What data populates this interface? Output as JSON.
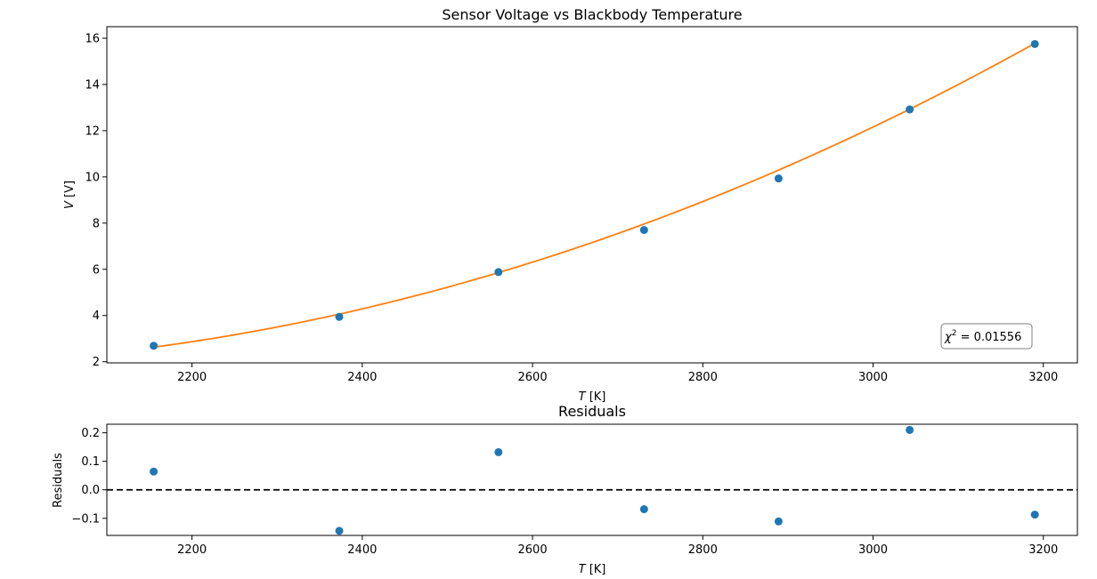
{
  "chart_data": [
    {
      "type": "scatter",
      "title": "Sensor Voltage vs Blackbody Temperature",
      "xlabel_var": "T",
      "xlabel_unit": " [K]",
      "ylabel_var": "V",
      "ylabel_unit": " [V]",
      "xlim": [
        2100,
        3240
      ],
      "ylim": [
        1.95,
        16.5
      ],
      "xticks": [
        2200,
        2400,
        2600,
        2800,
        3000,
        3200
      ],
      "yticks": [
        2,
        4,
        6,
        8,
        10,
        12,
        14,
        16
      ],
      "grid": false,
      "series": [
        {
          "kind": "points",
          "color": "#1f77b4",
          "x": [
            2155,
            2373,
            2560,
            2731,
            2889,
            3043,
            3190
          ],
          "y": [
            2.69,
            3.94,
            5.88,
            7.7,
            9.93,
            12.92,
            15.75
          ]
        },
        {
          "kind": "fit-line",
          "color": "#ff7f0e",
          "x_range": [
            2155,
            3190
          ],
          "model": "quadratic",
          "coefficients": [
            2.63,
            0.004922,
            7.52e-06
          ],
          "x_offset": 2155
        }
      ],
      "annotation": {
        "prefix": "χ",
        "sup": "2",
        "text": " = 0.01556",
        "placement": "bottom-right"
      }
    },
    {
      "type": "scatter",
      "title": "Residuals",
      "xlabel_var": "T",
      "xlabel_unit": " [K]",
      "ylabel": "Residuals",
      "xlim": [
        2100,
        3240
      ],
      "ylim": [
        -0.16,
        0.23
      ],
      "xticks": [
        2200,
        2400,
        2600,
        2800,
        3000,
        3200
      ],
      "yticks": [
        -0.1,
        0.0,
        0.1,
        0.2
      ],
      "ytick_labels": [
        "−0.1",
        "0.0",
        "0.1",
        "0.2"
      ],
      "grid": false,
      "reference_line": {
        "y": 0,
        "style": "dashed",
        "color": "#000000"
      },
      "series": [
        {
          "kind": "points",
          "color": "#1f77b4",
          "x": [
            2155,
            2373,
            2560,
            2731,
            2889,
            3043,
            3190
          ],
          "y": [
            0.064,
            -0.144,
            0.132,
            -0.068,
            -0.111,
            0.21,
            -0.087
          ]
        }
      ]
    }
  ]
}
